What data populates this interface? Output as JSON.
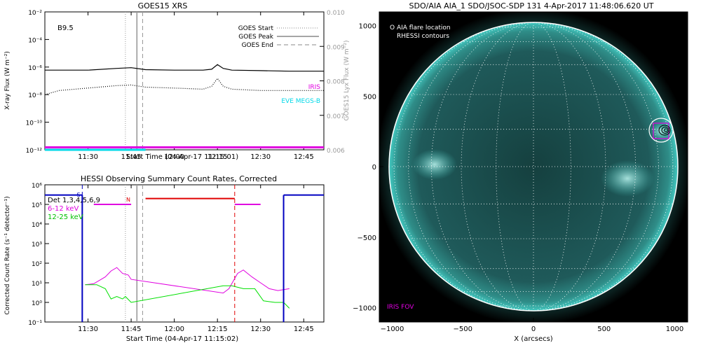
{
  "chart_data": [
    {
      "type": "line",
      "title": "GOES15 XRS",
      "xlabel": "Start Time (04-Apr-17 11:15:01)",
      "ylabel": "X-ray Flux (W m⁻²)",
      "y2label": "GOES15 Lyx Flux (W m⁻²)",
      "x_ticks": [
        "11:30",
        "11:45",
        "12:00",
        "12:15",
        "12:30",
        "12:45"
      ],
      "y_ticks": [
        "10⁻²",
        "10⁻⁴",
        "10⁻⁶",
        "10⁻⁸",
        "10⁻¹⁰",
        "10⁻¹²"
      ],
      "y2_ticks": [
        "0.010",
        "0.009",
        "0.008",
        "0.007",
        "0.006"
      ],
      "y_scale": "log",
      "ylim": [
        1e-12,
        0.01
      ],
      "y2lim": [
        0.006,
        0.01
      ],
      "xlim": [
        "11:15",
        "12:52"
      ],
      "class_label": "B9.5",
      "legend": {
        "placement": "top-right",
        "entries": [
          {
            "label": "GOES Start",
            "style": "dotted"
          },
          {
            "label": "GOES Peak",
            "style": "solid"
          },
          {
            "label": "GOES End",
            "style": "dashed"
          }
        ]
      },
      "annotations": [
        {
          "text": "IRIS",
          "color": "#e000e0"
        },
        {
          "text": "EVE MEGS-B",
          "color": "#00d8e8"
        }
      ],
      "vlines": {
        "start": "11:43",
        "peak": "11:47",
        "end": "11:49"
      },
      "series": [
        {
          "color": "#000000",
          "style": "solid",
          "x": [
            "11:15",
            "11:30",
            "11:40",
            "11:45",
            "11:50",
            "12:00",
            "12:10",
            "12:13",
            "12:15",
            "12:17",
            "12:20",
            "12:30",
            "12:40",
            "12:52"
          ],
          "y": [
            6e-07,
            6e-07,
            8e-07,
            9e-07,
            6.5e-07,
            6e-07,
            6e-07,
            7e-07,
            1.5e-06,
            8e-07,
            6e-07,
            5.5e-07,
            5e-07,
            5e-07
          ]
        },
        {
          "color": "#000000",
          "style": "dotted",
          "x": [
            "11:15",
            "11:20",
            "11:30",
            "11:40",
            "11:45",
            "11:50",
            "12:00",
            "12:10",
            "12:13",
            "12:15",
            "12:17",
            "12:20",
            "12:30",
            "12:40",
            "12:52"
          ],
          "y": [
            1e-08,
            2e-08,
            3e-08,
            4.5e-08,
            5e-08,
            3.5e-08,
            3e-08,
            2.5e-08,
            4e-08,
            1.5e-07,
            4e-08,
            2.5e-08,
            2e-08,
            2e-08,
            2e-08
          ]
        },
        {
          "color": "#e000e0",
          "style": "solid",
          "x": [
            "11:15",
            "12:52"
          ],
          "y": [
            1.5e-12,
            1.5e-12
          ]
        },
        {
          "color": "#00d8e8",
          "style": "solid",
          "x": [
            "11:15",
            "11:50"
          ],
          "y": [
            1e-12,
            1e-12
          ]
        }
      ]
    },
    {
      "type": "line",
      "title": "HESSI Observing Summary Count Rates, Corrected",
      "xlabel": "Start Time (04-Apr-17 11:15:02)",
      "ylabel": "Corrected Count Rate (s⁻¹ detector⁻¹)",
      "x_ticks": [
        "11:30",
        "11:45",
        "12:00",
        "12:15",
        "12:30",
        "12:45"
      ],
      "y_ticks": [
        "10⁶",
        "10⁵",
        "10⁴",
        "10³",
        "10²",
        "10¹",
        "10⁰",
        "10⁻¹"
      ],
      "y_scale": "log",
      "ylim": [
        0.1,
        1000000
      ],
      "xlim": [
        "11:15",
        "12:52"
      ],
      "legend": {
        "placement": "top-left",
        "entries": [
          {
            "label": "Det 1,3,4,5,6,9",
            "color": "#000000"
          },
          {
            "label": "6-12 keV",
            "color": "#e000e0"
          },
          {
            "label": "12-25 keV",
            "color": "#00e000"
          }
        ]
      },
      "state_labels": [
        {
          "text": "S",
          "color": "#0000c0"
        },
        {
          "text": "N",
          "color": "#e00000"
        }
      ],
      "vlines": {
        "blue": "11:28",
        "start": "11:43",
        "peak": "11:47",
        "end": "11:49",
        "red": "12:21"
      },
      "series": [
        {
          "name": "6-12 keV",
          "color": "#e000e0",
          "x": [
            "11:29",
            "11:32",
            "11:36",
            "11:38",
            "11:40",
            "11:42",
            "11:44",
            "11:45",
            "12:17",
            "12:19",
            "12:22",
            "12:24",
            "12:27",
            "12:30",
            "12:33",
            "12:36",
            "12:40"
          ],
          "y": [
            8,
            9,
            20,
            40,
            60,
            30,
            25,
            15,
            3,
            5,
            30,
            45,
            20,
            10,
            5,
            4,
            5
          ]
        },
        {
          "name": "12-25 keV",
          "color": "#00e000",
          "x": [
            "11:29",
            "11:33",
            "11:36",
            "11:38",
            "11:40",
            "11:42",
            "11:43",
            "11:45",
            "12:17",
            "12:20",
            "12:24",
            "12:28",
            "12:31",
            "12:35",
            "12:38",
            "12:40"
          ],
          "y": [
            8,
            8,
            5,
            1.5,
            2,
            1.5,
            2,
            1,
            7,
            7,
            5,
            5,
            1.2,
            1,
            1,
            0.5
          ]
        },
        {
          "name": "Det 1,3,4,5,6,9",
          "color": "#0000c0",
          "x": [
            "11:15",
            "11:28"
          ],
          "y": [
            300000,
            300000
          ]
        },
        {
          "color": "#0000c0",
          "x": [
            "12:38",
            "12:52"
          ],
          "y": [
            300000,
            300000
          ]
        },
        {
          "color": "#e000e0",
          "x": [
            "11:32",
            "11:45"
          ],
          "y": [
            100000,
            100000
          ]
        },
        {
          "color": "#e00000",
          "x": [
            "11:50",
            "12:21"
          ],
          "y": [
            200000,
            200000
          ]
        },
        {
          "color": "#e000e0",
          "x": [
            "12:21",
            "12:30"
          ],
          "y": [
            100000,
            100000
          ]
        }
      ]
    }
  ],
  "sun_panel": {
    "title": "SDO/AIA AIA_1 SDO/JSOC-SDP 131   4-Apr-2017 11:48:06.620 UT",
    "xlabel": "X (arcsecs)",
    "x_ticks": [
      "−1000",
      "−500",
      "0",
      "500",
      "1000"
    ],
    "y_ticks": [
      "1000",
      "500",
      "0",
      "−500",
      "−1000"
    ],
    "xlim": [
      -1000,
      1000
    ],
    "ylim": [
      -1000,
      1000
    ],
    "legend_lines": [
      "O AIA flare location",
      "RHESSI contours"
    ],
    "fov_label": "IRIS FOV",
    "colors": {
      "disk": "#1f5a5a",
      "limb": "#43c8c0",
      "grid": "#ffffff",
      "fov": "#e000e0"
    }
  }
}
